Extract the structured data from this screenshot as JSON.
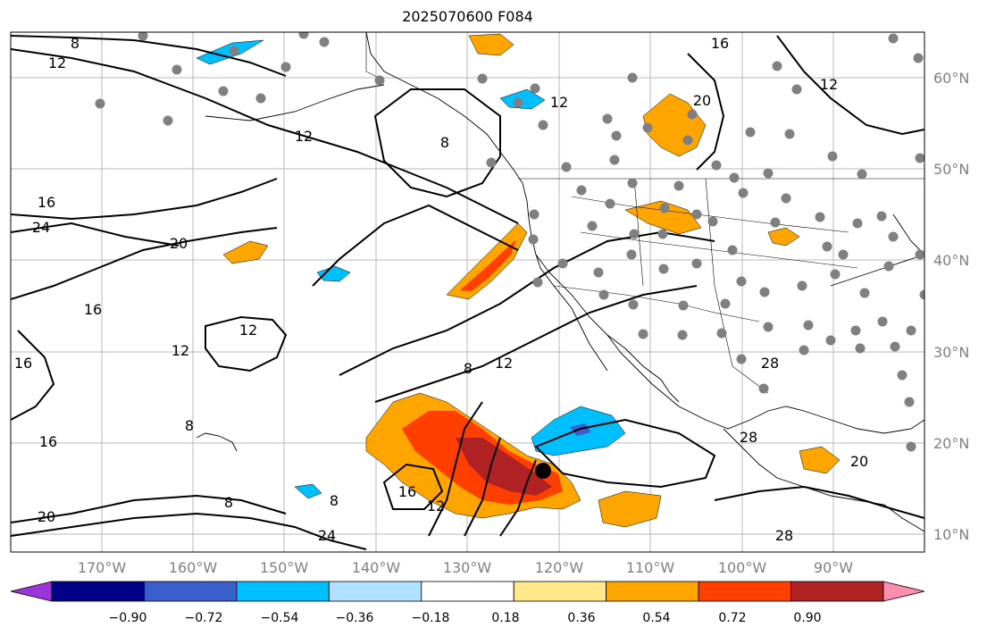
{
  "title": "2025070600 F084",
  "map": {
    "lat_labels": [
      "60°N",
      "50°N",
      "40°N",
      "30°N",
      "20°N",
      "10°N"
    ],
    "lon_labels": [
      "170°W",
      "160°W",
      "150°W",
      "140°W",
      "130°W",
      "120°W",
      "110°W",
      "100°W",
      "90°W"
    ],
    "contour_labels": [
      "8",
      "12",
      "12",
      "16",
      "24",
      "20",
      "16",
      "12",
      "12",
      "16",
      "16",
      "8",
      "12",
      "8",
      "16",
      "12",
      "8",
      "24",
      "28",
      "20",
      "20",
      "8",
      "16",
      "12",
      "8",
      "12",
      "28",
      "28",
      "20"
    ],
    "colors": {
      "positive": [
        "#ffe88a",
        "#ffa500",
        "#ff3f00",
        "#b02224",
        "#ff8db0"
      ],
      "negative": [
        "#9b35d9",
        "#000088",
        "#3a5fcd",
        "#00bfff",
        "#b0e2ff"
      ],
      "stations": "#808080",
      "marker": "#000000"
    }
  },
  "colorbar": {
    "labels": [
      "−0.90",
      "−0.72",
      "−0.54",
      "−0.36",
      "−0.18",
      "0.18",
      "0.36",
      "0.54",
      "0.72",
      "0.90"
    ],
    "colors": [
      "#9b35d9",
      "#000088",
      "#3a5fcd",
      "#00bfff",
      "#b0e2ff",
      "#ffffff",
      "#ffe88a",
      "#ffa500",
      "#ff3f00",
      "#b02224",
      "#ff8db0"
    ]
  }
}
